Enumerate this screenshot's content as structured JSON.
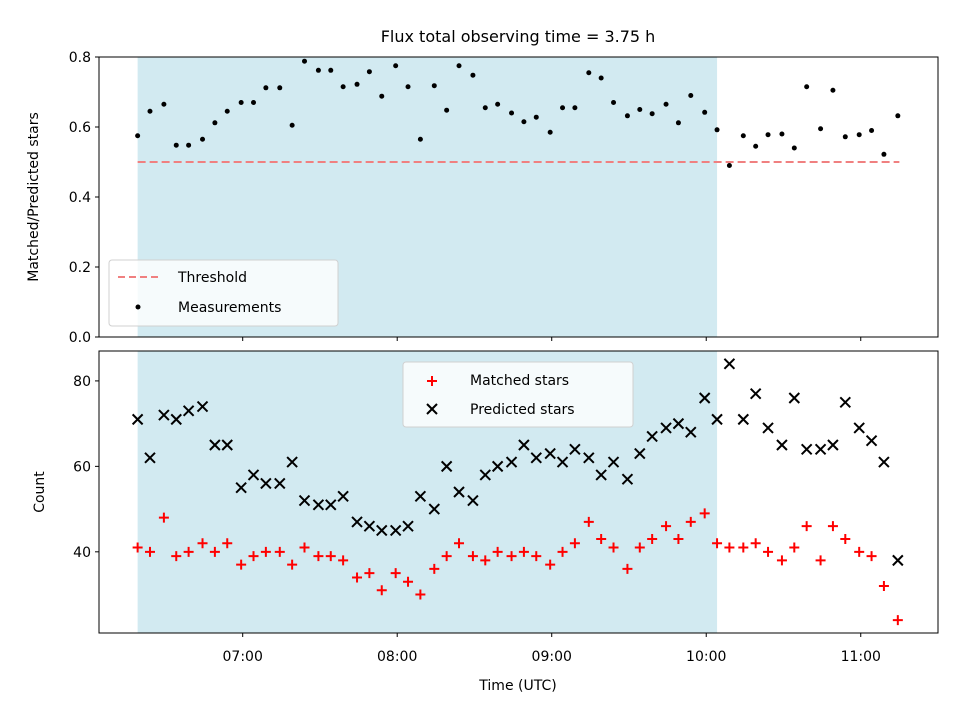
{
  "figure_title": "Flux total observing time = 3.75 h",
  "colors": {
    "shade": "#add8e6",
    "threshold": "#f08080",
    "matched": "#ff0000",
    "predicted": "#000000",
    "measurement": "#000000"
  },
  "chart_data": [
    {
      "type": "scatter",
      "title": "",
      "xlabel": "",
      "ylabel": "Matched/Predicted stars",
      "x_axis": "time (UTC, hours)",
      "xlim": [
        6.07,
        11.5
      ],
      "ylim": [
        0.0,
        0.8
      ],
      "yticks": [
        0.0,
        0.2,
        0.4,
        0.6,
        0.8
      ],
      "ytick_labels": [
        "0.0",
        "0.2",
        "0.4",
        "0.6",
        "0.8"
      ],
      "shaded_interval": [
        6.32,
        10.07
      ],
      "threshold": {
        "name": "Threshold",
        "value": 0.5,
        "x_range": [
          6.32,
          11.25
        ]
      },
      "legend": {
        "placement": "lower-left",
        "entries": [
          "Threshold",
          "Measurements"
        ]
      },
      "series": [
        {
          "name": "Measurements",
          "x": [
            6.32,
            6.4,
            6.49,
            6.57,
            6.65,
            6.74,
            6.82,
            6.9,
            6.99,
            7.07,
            7.15,
            7.24,
            7.32,
            7.4,
            7.49,
            7.57,
            7.65,
            7.74,
            7.82,
            7.9,
            7.99,
            8.07,
            8.15,
            8.24,
            8.32,
            8.4,
            8.49,
            8.57,
            8.65,
            8.74,
            8.82,
            8.9,
            8.99,
            9.07,
            9.15,
            9.24,
            9.32,
            9.4,
            9.49,
            9.57,
            9.65,
            9.74,
            9.82,
            9.9,
            9.99,
            10.07,
            10.15,
            10.24,
            10.32,
            10.4,
            10.49,
            10.57,
            10.65,
            10.74,
            10.82,
            10.9,
            10.99,
            11.07,
            11.15,
            11.24
          ],
          "y": [
            0.575,
            0.645,
            0.665,
            0.548,
            0.548,
            0.565,
            0.612,
            0.645,
            0.67,
            0.67,
            0.712,
            0.712,
            0.605,
            0.788,
            0.762,
            0.762,
            0.715,
            0.722,
            0.758,
            0.688,
            0.775,
            0.715,
            0.565,
            0.718,
            0.648,
            0.775,
            0.748,
            0.655,
            0.665,
            0.64,
            0.615,
            0.628,
            0.585,
            0.655,
            0.655,
            0.755,
            0.74,
            0.67,
            0.632,
            0.65,
            0.638,
            0.665,
            0.612,
            0.69,
            0.642,
            0.592,
            0.49,
            0.575,
            0.545,
            0.578,
            0.58,
            0.54,
            0.715,
            0.595,
            0.705,
            0.572,
            0.578,
            0.59,
            0.522,
            0.632
          ]
        }
      ]
    },
    {
      "type": "scatter",
      "title": "",
      "xlabel": "Time (UTC)",
      "ylabel": "Count",
      "x_axis": "time (UTC, hours)",
      "xlim": [
        6.07,
        11.5
      ],
      "ylim": [
        21,
        87
      ],
      "yticks": [
        40,
        60,
        80
      ],
      "ytick_labels": [
        "40",
        "60",
        "80"
      ],
      "xticks": [
        7,
        8,
        9,
        10,
        11
      ],
      "xtick_labels": [
        "07:00",
        "08:00",
        "09:00",
        "10:00",
        "11:00"
      ],
      "shaded_interval": [
        6.32,
        10.07
      ],
      "legend": {
        "placement": "upper-center",
        "entries": [
          "Matched stars",
          "Predicted stars"
        ]
      },
      "series": [
        {
          "name": "Matched stars",
          "marker": "+",
          "x": [
            6.32,
            6.4,
            6.49,
            6.57,
            6.65,
            6.74,
            6.82,
            6.9,
            6.99,
            7.07,
            7.15,
            7.24,
            7.32,
            7.4,
            7.49,
            7.57,
            7.65,
            7.74,
            7.82,
            7.9,
            7.99,
            8.07,
            8.15,
            8.24,
            8.32,
            8.4,
            8.49,
            8.57,
            8.65,
            8.74,
            8.82,
            8.9,
            8.99,
            9.07,
            9.15,
            9.24,
            9.32,
            9.4,
            9.49,
            9.57,
            9.65,
            9.74,
            9.82,
            9.9,
            9.99,
            10.07,
            10.15,
            10.24,
            10.32,
            10.4,
            10.49,
            10.57,
            10.65,
            10.74,
            10.82,
            10.9,
            10.99,
            11.07,
            11.15,
            11.24
          ],
          "y": [
            41,
            40,
            48,
            39,
            40,
            42,
            40,
            42,
            37,
            39,
            40,
            40,
            37,
            41,
            39,
            39,
            38,
            34,
            35,
            31,
            35,
            33,
            30,
            36,
            39,
            42,
            39,
            38,
            40,
            39,
            40,
            39,
            37,
            40,
            42,
            47,
            43,
            41,
            36,
            41,
            43,
            46,
            43,
            47,
            49,
            42,
            41,
            41,
            42,
            40,
            38,
            41,
            46,
            38,
            46,
            43,
            40,
            39,
            32,
            24
          ]
        },
        {
          "name": "Predicted stars",
          "marker": "x",
          "x": [
            6.32,
            6.4,
            6.49,
            6.57,
            6.65,
            6.74,
            6.82,
            6.9,
            6.99,
            7.07,
            7.15,
            7.24,
            7.32,
            7.4,
            7.49,
            7.57,
            7.65,
            7.74,
            7.82,
            7.9,
            7.99,
            8.07,
            8.15,
            8.24,
            8.32,
            8.4,
            8.49,
            8.57,
            8.65,
            8.74,
            8.82,
            8.9,
            8.99,
            9.07,
            9.15,
            9.24,
            9.32,
            9.4,
            9.49,
            9.57,
            9.65,
            9.74,
            9.82,
            9.9,
            9.99,
            10.07,
            10.15,
            10.24,
            10.32,
            10.4,
            10.49,
            10.57,
            10.65,
            10.74,
            10.82,
            10.9,
            10.99,
            11.07,
            11.15,
            11.24
          ],
          "y": [
            71,
            62,
            72,
            71,
            73,
            74,
            65,
            65,
            55,
            58,
            56,
            56,
            61,
            52,
            51,
            51,
            53,
            47,
            46,
            45,
            45,
            46,
            53,
            50,
            60,
            54,
            52,
            58,
            60,
            61,
            65,
            62,
            63,
            61,
            64,
            62,
            58,
            61,
            57,
            63,
            67,
            69,
            70,
            68,
            76,
            71,
            84,
            71,
            77,
            69,
            65,
            76,
            64,
            64,
            65,
            75,
            69,
            66,
            61,
            38
          ]
        }
      ]
    }
  ]
}
